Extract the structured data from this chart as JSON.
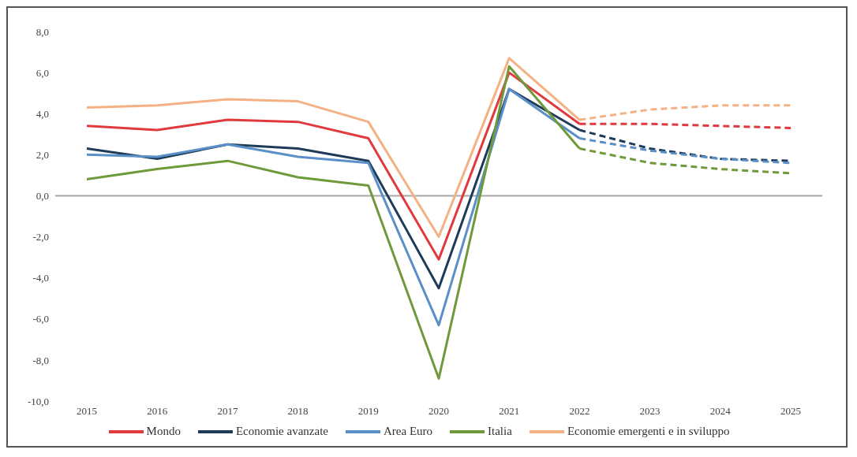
{
  "chart_data": {
    "type": "line",
    "categories": [
      "2015",
      "2016",
      "2017",
      "2018",
      "2019",
      "2020",
      "2021",
      "2022",
      "2023",
      "2024",
      "2025"
    ],
    "series": [
      {
        "name": "Mondo",
        "color": "#e0393e",
        "line_style": "solid",
        "values": [
          3.4,
          3.2,
          3.7,
          3.6,
          2.8,
          -3.1,
          6.0,
          3.5,
          null,
          null,
          null
        ]
      },
      {
        "name": "Economie avanzate",
        "color": "#1f3b5a",
        "line_style": "solid",
        "values": [
          2.3,
          1.8,
          2.5,
          2.3,
          1.7,
          -4.5,
          5.2,
          3.2,
          null,
          null,
          null
        ]
      },
      {
        "name": "Area Euro",
        "color": "#5b8fc7",
        "line_style": "solid",
        "values": [
          2.0,
          1.9,
          2.5,
          1.9,
          1.6,
          -6.3,
          5.2,
          2.8,
          null,
          null,
          null
        ]
      },
      {
        "name": "Italia",
        "color": "#6f9a3c",
        "line_style": "solid",
        "values": [
          0.8,
          1.3,
          1.7,
          0.9,
          0.5,
          -8.9,
          6.3,
          2.3,
          null,
          null,
          null
        ]
      },
      {
        "name": "Economie emergenti e in sviluppo",
        "color": "#f4b183",
        "line_style": "solid",
        "values": [
          4.3,
          4.4,
          4.7,
          4.6,
          3.6,
          -2.0,
          6.7,
          3.7,
          null,
          null,
          null
        ]
      },
      {
        "color": "#e0393e",
        "line_style": "dashed",
        "values": [
          null,
          null,
          null,
          null,
          null,
          null,
          null,
          3.5,
          3.5,
          3.4,
          3.3
        ]
      },
      {
        "color": "#1f3b5a",
        "line_style": "dashed",
        "values": [
          null,
          null,
          null,
          null,
          null,
          null,
          null,
          3.2,
          2.3,
          1.8,
          1.7
        ]
      },
      {
        "color": "#5b8fc7",
        "line_style": "dashed",
        "values": [
          null,
          null,
          null,
          null,
          null,
          null,
          null,
          2.8,
          2.2,
          1.8,
          1.6
        ]
      },
      {
        "color": "#6f9a3c",
        "line_style": "dashed",
        "values": [
          null,
          null,
          null,
          null,
          null,
          null,
          null,
          2.3,
          1.6,
          1.3,
          1.1
        ]
      },
      {
        "color": "#f4b183",
        "line_style": "dashed",
        "values": [
          null,
          null,
          null,
          null,
          null,
          null,
          null,
          3.7,
          4.2,
          4.4,
          4.4
        ]
      }
    ],
    "ylim": [
      -10,
      8
    ],
    "yticks": [
      {
        "value": -10,
        "label": "-10,0"
      },
      {
        "value": -8,
        "label": "-8,0"
      },
      {
        "value": -6,
        "label": "-6,0"
      },
      {
        "value": -4,
        "label": "-4,0"
      },
      {
        "value": -2,
        "label": "-2,0"
      },
      {
        "value": 0,
        "label": "0,0"
      },
      {
        "value": 2,
        "label": "2,0"
      },
      {
        "value": 4,
        "label": "4,0"
      },
      {
        "value": 6,
        "label": "6,0"
      },
      {
        "value": 8,
        "label": "8,0"
      }
    ],
    "ref_lines": [
      {
        "axis": "y",
        "value": 0,
        "color": "#a6a6a6"
      }
    ],
    "grid": false,
    "legend": "bottom",
    "marker": "none"
  }
}
